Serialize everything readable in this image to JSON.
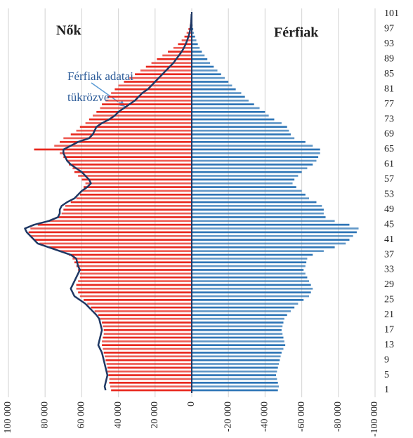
{
  "chart_data": {
    "type": "pyramid",
    "categories": [
      1,
      null,
      null,
      null,
      5,
      null,
      null,
      null,
      9,
      null,
      null,
      null,
      13,
      null,
      null,
      null,
      17,
      null,
      null,
      null,
      21,
      null,
      null,
      null,
      25,
      null,
      null,
      null,
      29,
      null,
      null,
      null,
      33,
      null,
      null,
      null,
      37,
      null,
      null,
      null,
      41,
      null,
      null,
      null,
      45,
      null,
      null,
      null,
      49,
      null,
      null,
      null,
      53,
      null,
      null,
      null,
      57,
      null,
      null,
      null,
      61,
      null,
      null,
      null,
      65,
      null,
      null,
      null,
      69,
      null,
      null,
      null,
      73,
      null,
      null,
      null,
      77,
      null,
      null,
      null,
      81,
      null,
      null,
      null,
      85,
      null,
      null,
      null,
      89,
      null,
      null,
      null,
      93,
      null,
      null,
      null,
      97,
      null,
      null,
      null,
      101
    ],
    "series": [
      {
        "name": "Nők",
        "color": "#e8281e",
        "values": [
          44000,
          44500,
          45000,
          45000,
          45500,
          46000,
          46000,
          46500,
          47000,
          47500,
          48000,
          48500,
          49000,
          49000,
          48500,
          48000,
          48000,
          48500,
          49000,
          50000,
          51000,
          53000,
          55000,
          57000,
          59000,
          61000,
          62000,
          63000,
          63000,
          62000,
          61000,
          61000,
          62000,
          63000,
          64000,
          65000,
          67000,
          72000,
          78000,
          83000,
          86000,
          88000,
          89000,
          88000,
          84000,
          78000,
          73000,
          71000,
          70000,
          69000,
          66000,
          63000,
          61000,
          60000,
          59000,
          58000,
          60000,
          62000,
          64000,
          65000,
          67000,
          68000,
          70000,
          72000,
          86000,
          75000,
          72000,
          70000,
          66000,
          63000,
          61000,
          58000,
          56000,
          54000,
          52000,
          50000,
          49000,
          47000,
          46000,
          44000,
          42000,
          40000,
          37000,
          34000,
          31000,
          28000,
          25000,
          22000,
          19000,
          16000,
          13000,
          10000,
          7500,
          5500,
          4000,
          2800,
          1800,
          1100,
          700,
          400,
          200
        ]
      },
      {
        "name": "Férfiak",
        "color": "#2e75b6",
        "values": [
          -47000,
          -47500,
          -47000,
          -46500,
          -46000,
          -46500,
          -47000,
          -47500,
          -48000,
          -48500,
          -49000,
          -50000,
          -51000,
          -50500,
          -50000,
          -49500,
          -49000,
          -49500,
          -50000,
          -50500,
          -52000,
          -54000,
          -56000,
          -58000,
          -61000,
          -64000,
          -65000,
          -66000,
          -65000,
          -64000,
          -63000,
          -62000,
          -61000,
          -62000,
          -62500,
          -63000,
          -66000,
          -72000,
          -78000,
          -84000,
          -86000,
          -88000,
          -90000,
          -91000,
          -86000,
          -78000,
          -73000,
          -72000,
          -72000,
          -71000,
          -68000,
          -64000,
          -62000,
          -60000,
          -57000,
          -55000,
          -56000,
          -58000,
          -60000,
          -63000,
          -66000,
          -68000,
          -69000,
          -70000,
          -70000,
          -66000,
          -62000,
          -56000,
          -54000,
          -53000,
          -52000,
          -49000,
          -45000,
          -42000,
          -40000,
          -37000,
          -34000,
          -31000,
          -29000,
          -27000,
          -24000,
          -22000,
          -20000,
          -18000,
          -16000,
          -14000,
          -12000,
          -10000,
          -8500,
          -7000,
          -5500,
          -4300,
          -3300,
          -2500,
          -1800,
          -1200,
          -800,
          -500,
          -300,
          -200,
          -100
        ]
      }
    ],
    "mirror_line": {
      "color": "#1f3864",
      "values": [
        47000,
        47500,
        47000,
        46500,
        46000,
        46500,
        47000,
        47500,
        48000,
        48500,
        49000,
        50000,
        51000,
        50500,
        50000,
        49500,
        49000,
        49500,
        50000,
        50500,
        52000,
        54000,
        56000,
        58000,
        61000,
        64000,
        65000,
        66000,
        65000,
        64000,
        63000,
        62000,
        61000,
        62000,
        62500,
        63000,
        66000,
        72000,
        78000,
        84000,
        86000,
        88000,
        90000,
        91000,
        86000,
        78000,
        73000,
        72000,
        72000,
        71000,
        68000,
        64000,
        62000,
        60000,
        57000,
        55000,
        56000,
        58000,
        60000,
        63000,
        66000,
        68000,
        69000,
        70000,
        70000,
        66000,
        62000,
        56000,
        54000,
        53000,
        52000,
        49000,
        45000,
        42000,
        40000,
        37000,
        34000,
        31000,
        29000,
        27000,
        24000,
        22000,
        20000,
        18000,
        16000,
        14000,
        12000,
        10000,
        8500,
        7000,
        5500,
        4300,
        3300,
        2500,
        1800,
        1200,
        800,
        500,
        300,
        200,
        100
      ]
    },
    "annotation": [
      "Férfiak adatai",
      "tükrözve"
    ],
    "xlim": [
      100000,
      -100000
    ],
    "xticks": [
      {
        "value": 100000,
        "label": "100 000"
      },
      {
        "value": 80000,
        "label": "80 000"
      },
      {
        "value": 60000,
        "label": "60 000"
      },
      {
        "value": 40000,
        "label": "40 000"
      },
      {
        "value": 20000,
        "label": "20 000"
      },
      0,
      {
        "value": -20000,
        "label": "-20 000"
      },
      {
        "value": -40000,
        "label": "-40 000"
      },
      {
        "value": -60000,
        "label": "-60 000"
      },
      {
        "value": -80000,
        "label": "-80 000"
      },
      {
        "value": -100000,
        "label": "-100 000"
      }
    ],
    "grid": true
  }
}
